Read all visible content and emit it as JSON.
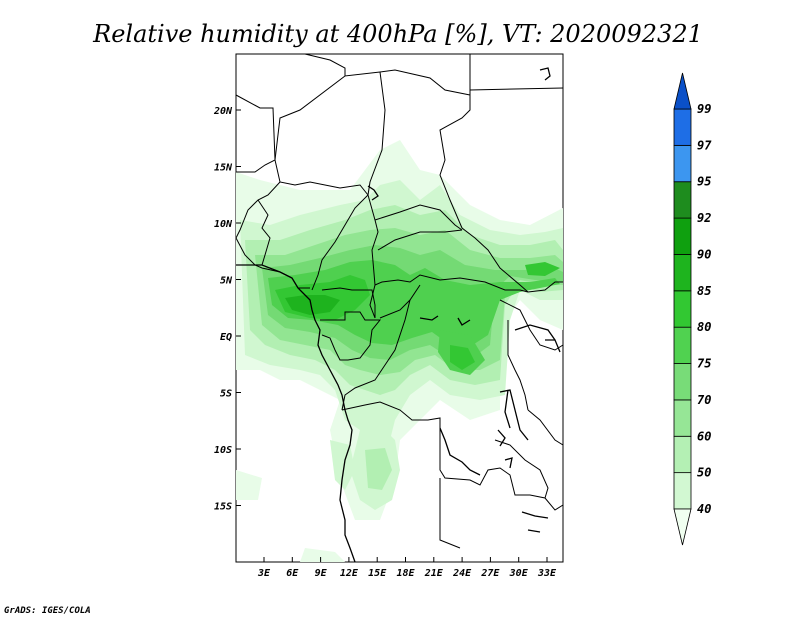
{
  "title": "Relative humidity at 400hPa [%], VT: 2020092321",
  "credit": "GrADS: IGES/COLA",
  "map": {
    "lon_range": [
      0,
      34
    ],
    "lat_range": [
      -20,
      25
    ],
    "x_ticks": [
      "3E",
      "6E",
      "9E",
      "12E",
      "15E",
      "18E",
      "21E",
      "24E",
      "27E",
      "30E",
      "33E"
    ],
    "y_ticks": [
      "20N",
      "15N",
      "10N",
      "5N",
      "EQ",
      "5S",
      "10S",
      "15S"
    ]
  },
  "colorbar": {
    "labels": [
      "40",
      "50",
      "60",
      "70",
      "75",
      "80",
      "85",
      "90",
      "92",
      "95",
      "97",
      "99"
    ],
    "colors": [
      "#f0fff0",
      "#d2f8d2",
      "#b4f0b4",
      "#96e696",
      "#78dc78",
      "#50d250",
      "#32c832",
      "#1eb41e",
      "#0fa00f",
      "#1e8c1e",
      "#3c96f0",
      "#1e6ee6",
      "#0a50c8"
    ]
  }
}
